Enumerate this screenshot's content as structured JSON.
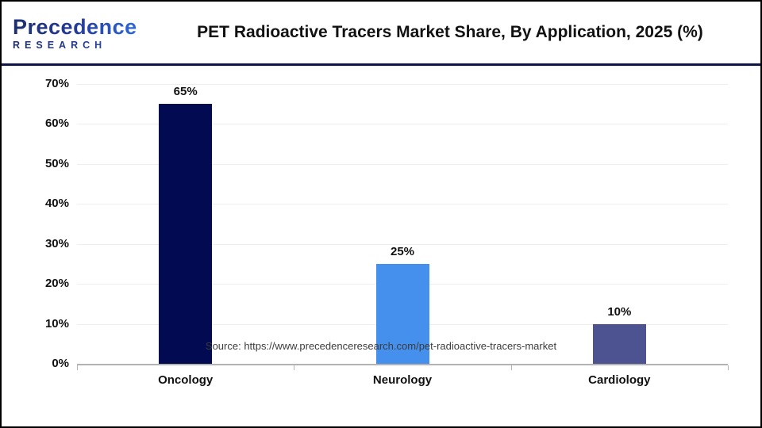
{
  "header": {
    "logo": {
      "name": "Precedence",
      "subtitle": "RESEARCH"
    },
    "title": "PET Radioactive Tracers Market Share, By Application, 2025 (%)"
  },
  "chart_data": {
    "type": "bar",
    "title": "PET Radioactive Tracers Market Share, By Application, 2025 (%)",
    "categories": [
      "Oncology",
      "Neurology",
      "Cardiology"
    ],
    "values": [
      65,
      25,
      10
    ],
    "data_labels": [
      "65%",
      "25%",
      "10%"
    ],
    "bar_colors": [
      "#020b52",
      "#4590ec",
      "#4d5290"
    ],
    "xlabel": "",
    "ylabel": "",
    "ylim": [
      0,
      70
    ],
    "ytick_step": 10,
    "ytick_labels": [
      "0%",
      "10%",
      "20%",
      "30%",
      "40%",
      "50%",
      "60%",
      "70%"
    ],
    "grid": true,
    "legend": "none"
  },
  "footer": {
    "source": "Source: https://www.precedenceresearch.com/pet-radioactive-tracers-market"
  },
  "colors": {
    "divider": "#0e1446",
    "axis_line": "#b3b3b3",
    "gridline": "#eeeeee",
    "text": "#111111",
    "source_text": "#3c3c3c",
    "logo_dark": "#1f2f6e",
    "logo_blue": "#2f6fe4"
  }
}
